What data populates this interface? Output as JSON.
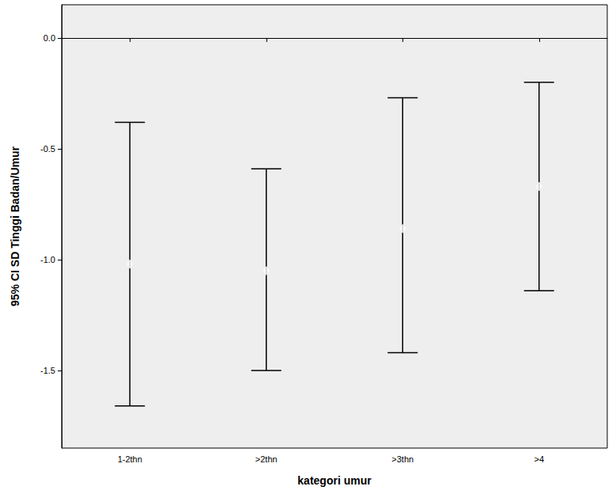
{
  "chart_data": {
    "type": "errorbar",
    "x_label": "kategori umur",
    "y_label": "95% CI SD Tinggi Badan/Umur",
    "categories": [
      "1-2thn",
      ">2thn",
      ">3thn",
      ">4"
    ],
    "values": [
      -1.02,
      -1.05,
      -0.86,
      -0.67
    ],
    "ci_lower": [
      -1.66,
      -1.5,
      -1.42,
      -1.14
    ],
    "ci_upper": [
      -0.38,
      -0.59,
      -0.27,
      -0.2
    ],
    "color": "#000000",
    "marker": "circle",
    "ylim": [
      -1.85,
      0.15
    ],
    "yticks": [
      -1.5,
      {
        "value": -1.0,
        "label": "-1.0"
      },
      -0.5,
      {
        "value": 0.0,
        "label": "0.0"
      }
    ],
    "grid": false
  }
}
